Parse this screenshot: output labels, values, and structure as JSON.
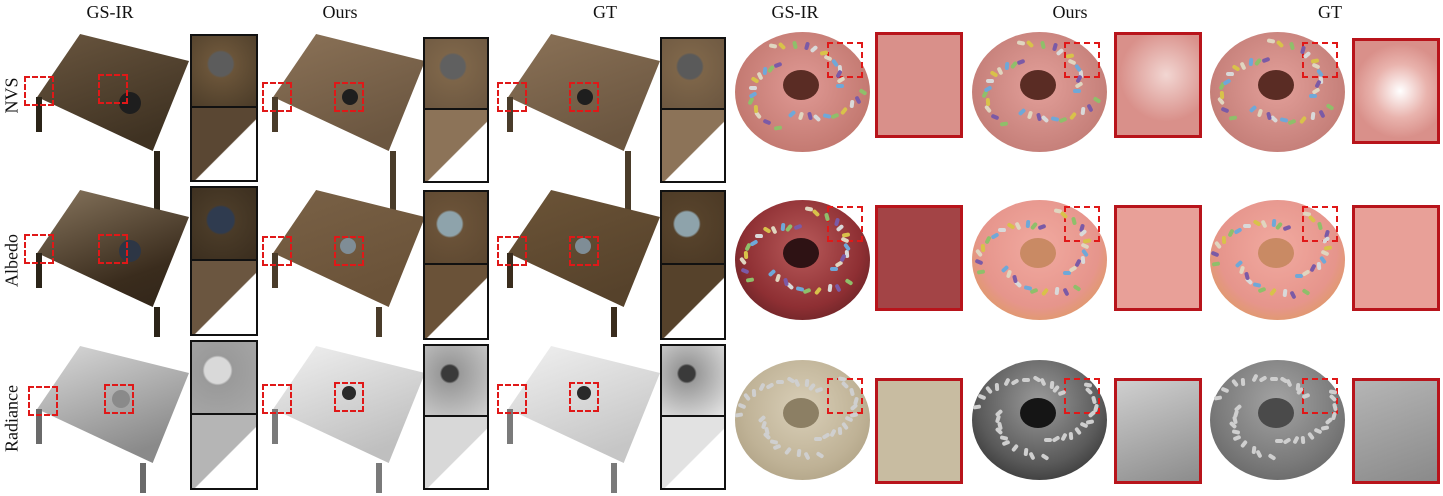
{
  "column_titles": [
    "GS-IR",
    "Ours",
    "GT",
    "GS-IR",
    "Ours",
    "GT"
  ],
  "row_labels": [
    "NVS",
    "Albedo",
    "Radiance"
  ],
  "colors": {
    "zoom_box": "#e01818",
    "inset_border_table": "#111111",
    "inset_border_donut": "#b8141b",
    "wood_dark": "#4a3a28",
    "wood_mid": "#7a6247",
    "wood_light": "#9a8166",
    "donut_pink": "#d98a86",
    "donut_pink_dark": "#a43a3c",
    "donut_cream": "#c9bda3",
    "donut_gray": "#6d6d6d",
    "donut_dark": "#3a3a3a"
  }
}
